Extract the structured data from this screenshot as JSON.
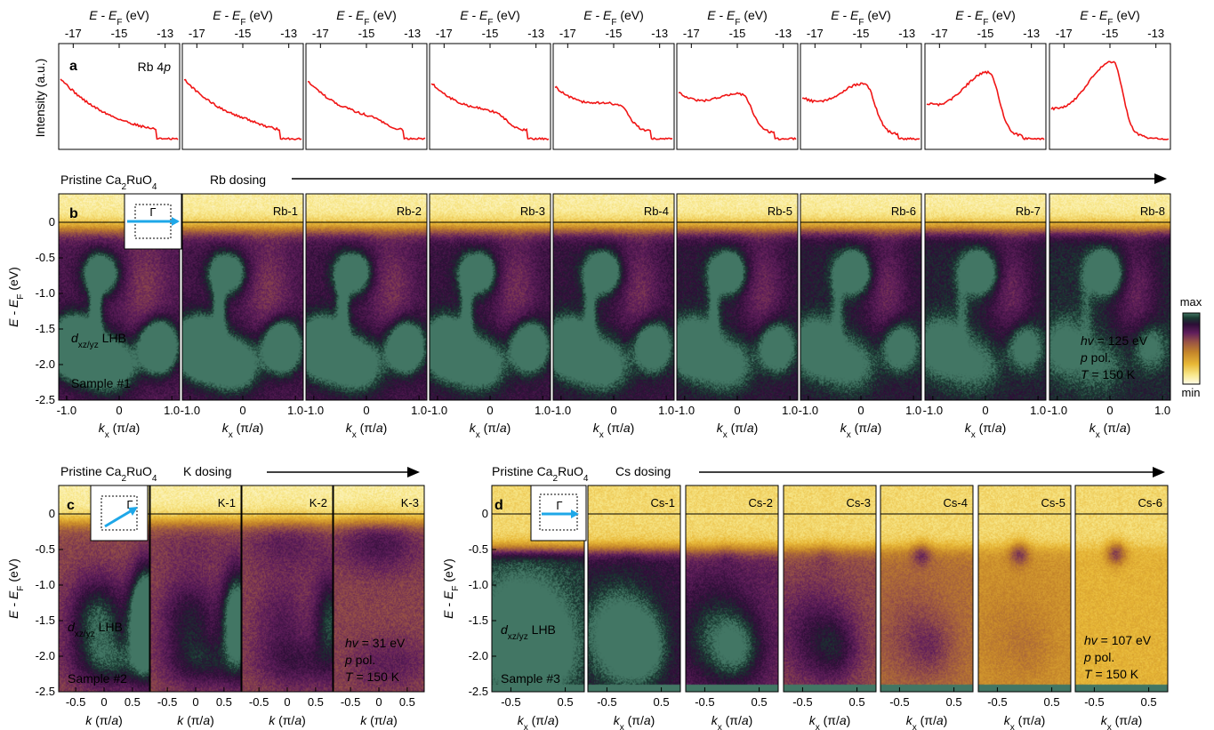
{
  "figure": {
    "panel_labels": [
      "a",
      "b",
      "c",
      "d"
    ],
    "colors": {
      "spectrum": "#f01515",
      "cmap": [
        "#fffbe6",
        "#f6e27a",
        "#e0a82e",
        "#b36b2a",
        "#6e2a5e",
        "#2e0f3a",
        "#184036",
        "#3b6e60"
      ]
    }
  },
  "panel_a": {
    "top_axis_label": "E - E",
    "top_axis_sub": "F",
    "top_axis_unit": " (eV)",
    "top_ticks": [
      "-17",
      "-15",
      "-13"
    ],
    "ylabel": "Intensity (a.u.)",
    "annotation": "Rb 4",
    "annotation_italic": "p"
  },
  "panel_b": {
    "header_left": "Pristine Ca",
    "header_left_sub1": "2",
    "header_left_mid": "RuO",
    "header_left_sub2": "4",
    "header_right": "Rb dosing",
    "titles": [
      "",
      "Rb-1",
      "Rb-2",
      "Rb-3",
      "Rb-4",
      "Rb-5",
      "Rb-6",
      "Rb-7",
      "Rb-8"
    ],
    "yticks": [
      "0",
      "-0.5",
      "-1.0",
      "-1.5",
      "-2.0",
      "-2.5"
    ],
    "xticks": [
      "-1.0",
      "0",
      "1.0"
    ],
    "xlabel_k": "k",
    "xlabel_sub": "x",
    "xlabel_unit": " (π/",
    "xlabel_a": "a",
    "xlabel_close": ")",
    "ylabel_e": "E - E",
    "ylabel_sub": "F",
    "ylabel_unit": " (eV)",
    "lhb_d": "d",
    "lhb_sub": "xz/yz",
    "lhb_rest": " LHB",
    "sample": "Sample #1",
    "hv": "hv",
    "hv_val": " = 125 eV",
    "pol_p": "p",
    "pol": " pol.",
    "temp_T": "T",
    "temp": " = 150 K",
    "cbar_max": "max",
    "cbar_min": "min",
    "gamma": "Γ"
  },
  "panel_c": {
    "header_left": "Pristine Ca",
    "header_left_sub1": "2",
    "header_left_mid": "RuO",
    "header_left_sub2": "4",
    "header_right": "K dosing",
    "titles": [
      "",
      "K-1",
      "K-2",
      "K-3"
    ],
    "yticks": [
      "0",
      "-0.5",
      "-1.0",
      "-1.5",
      "-2.0",
      "-2.5"
    ],
    "xticks": [
      "-0.5",
      "0",
      "0.5"
    ],
    "xlabel_k": "k",
    "xlabel_unit": " (π/",
    "xlabel_a": "a",
    "xlabel_close": ")",
    "lhb_d": "d",
    "lhb_sub": "xz/yz",
    "lhb_rest": " LHB",
    "sample": "Sample #2",
    "hv": "hv",
    "hv_val": " = 31 eV",
    "pol_p": "p",
    "pol": " pol.",
    "temp_T": "T",
    "temp": " = 150 K",
    "gamma": "Γ"
  },
  "panel_d": {
    "header_left": "Pristine Ca",
    "header_left_sub1": "2",
    "header_left_mid": "RuO",
    "header_left_sub2": "4",
    "header_right": "Cs dosing",
    "titles": [
      "",
      "Cs-1",
      "Cs-2",
      "Cs-3",
      "Cs-4",
      "Cs-5",
      "Cs-6"
    ],
    "yticks": [
      "0",
      "-0.5",
      "-1.0",
      "-1.5",
      "-2.0",
      "-2.5"
    ],
    "xticks": [
      "-0.5",
      "0.5"
    ],
    "xlabel_k": "k",
    "xlabel_sub": "x",
    "xlabel_unit": " (π/",
    "xlabel_a": "a",
    "xlabel_close": ")",
    "lhb_d": "d",
    "lhb_sub": "xz/yz",
    "lhb_rest": " LHB",
    "sample": "Sample #3",
    "hv": "hv",
    "hv_val": " = 107 eV",
    "pol_p": "p",
    "pol": " pol.",
    "temp_T": "T",
    "temp": " = 150 K",
    "gamma": "Γ"
  }
}
